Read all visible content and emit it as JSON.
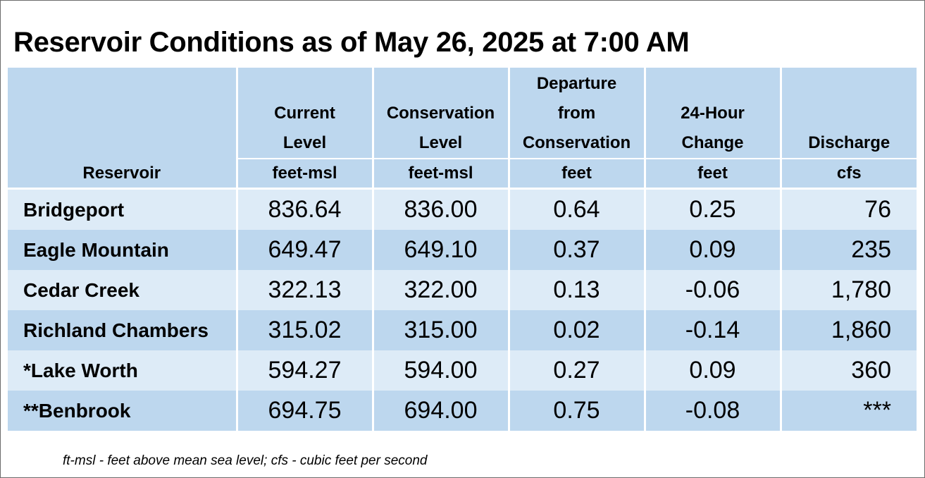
{
  "title": "Reservoir Conditions as of May 26, 2025 at 7:00 AM",
  "columns": [
    {
      "label_lines": [
        ""
      ],
      "label": "Reservoir",
      "unit": ""
    },
    {
      "label_lines": [
        "Current",
        "Level"
      ],
      "unit": "feet-msl"
    },
    {
      "label_lines": [
        "Conservation",
        "Level"
      ],
      "unit": "feet-msl"
    },
    {
      "label_lines": [
        "Departure",
        "from",
        "Conservation"
      ],
      "unit": "feet"
    },
    {
      "label_lines": [
        "24-Hour",
        "Change"
      ],
      "unit": "feet"
    },
    {
      "label_lines": [
        "Discharge"
      ],
      "unit": "cfs"
    }
  ],
  "rows": [
    {
      "reservoir": "Bridgeport",
      "current": "836.64",
      "conservation": "836.00",
      "departure": "0.64",
      "change": "0.25",
      "discharge": "76"
    },
    {
      "reservoir": "Eagle Mountain",
      "current": "649.47",
      "conservation": "649.10",
      "departure": "0.37",
      "change": "0.09",
      "discharge": "235"
    },
    {
      "reservoir": "Cedar Creek",
      "current": "322.13",
      "conservation": "322.00",
      "departure": "0.13",
      "change": "-0.06",
      "discharge": "1,780"
    },
    {
      "reservoir": "Richland Chambers",
      "current": "315.02",
      "conservation": "315.00",
      "departure": "0.02",
      "change": "-0.14",
      "discharge": "1,860"
    },
    {
      "reservoir": "*Lake Worth",
      "current": "594.27",
      "conservation": "594.00",
      "departure": "0.27",
      "change": "0.09",
      "discharge": "360"
    },
    {
      "reservoir": "**Benbrook",
      "current": "694.75",
      "conservation": "694.00",
      "departure": "0.75",
      "change": "-0.08",
      "discharge": "***"
    }
  ],
  "footnote": "ft-msl - feet above mean sea level; cfs - cubic feet per second",
  "colors": {
    "header_bg": "#bdd7ee",
    "row_light": "#ddebf7",
    "row_dark": "#bdd7ee",
    "divider": "#ffffff"
  }
}
